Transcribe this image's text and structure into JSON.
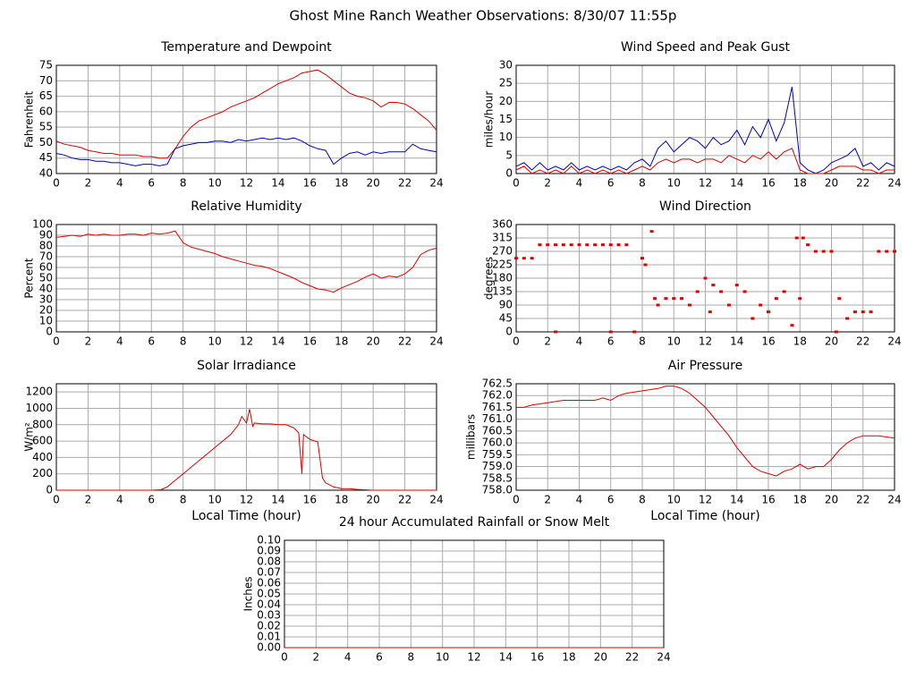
{
  "title": "Ghost Mine Ranch Weather Observations: 8/30/07 11:55p",
  "chart_data": [
    {
      "type": "line",
      "title": "Temperature and Dewpoint",
      "ylabel": "Fahrenheit",
      "x": [
        0,
        0.5,
        1,
        1.5,
        2,
        2.5,
        3,
        3.5,
        4,
        4.5,
        5,
        5.5,
        6,
        6.5,
        7,
        7.5,
        8,
        8.5,
        9,
        9.5,
        10,
        10.5,
        11,
        11.5,
        12,
        12.5,
        13,
        13.5,
        14,
        14.5,
        15,
        15.5,
        16,
        16.5,
        17,
        17.5,
        18,
        18.5,
        19,
        19.5,
        20,
        20.5,
        21,
        21.5,
        22,
        22.5,
        23,
        23.5,
        24
      ],
      "series": [
        {
          "color": "#e00000",
          "values": [
            50.5,
            49.5,
            49,
            48.5,
            47.5,
            47,
            46.5,
            46.5,
            46,
            46,
            46,
            45.5,
            45.5,
            45,
            45,
            48,
            52,
            55,
            57,
            58,
            59,
            60,
            61.5,
            62.5,
            63.5,
            64.5,
            66,
            67.5,
            69,
            70,
            71,
            72.5,
            73,
            73.5,
            72,
            70,
            68,
            66,
            65,
            64.5,
            63.5,
            61.5,
            63,
            63,
            62.5,
            61,
            59,
            57,
            54
          ]
        },
        {
          "color": "#0000c0",
          "values": [
            46.5,
            46,
            45,
            44.5,
            44.5,
            44,
            44,
            43.5,
            43.5,
            43,
            42.5,
            43,
            43,
            42.5,
            43,
            48,
            49,
            49.5,
            50,
            50,
            50.5,
            50.5,
            50,
            51,
            50.5,
            51,
            51.5,
            51,
            51.5,
            51,
            51.5,
            50.5,
            49,
            48,
            47.5,
            43,
            45,
            46.5,
            47,
            46,
            47,
            46.5,
            47,
            47,
            47,
            49.5,
            48,
            47.5,
            47
          ]
        }
      ],
      "xlim": [
        0,
        24
      ],
      "xticks": [
        0,
        2,
        4,
        6,
        8,
        10,
        12,
        14,
        16,
        18,
        20,
        22,
        24
      ],
      "ylim": [
        40,
        75
      ],
      "yticks": [
        40,
        45,
        50,
        55,
        60,
        65,
        70,
        75
      ],
      "grid": true
    },
    {
      "type": "line",
      "title": "Wind Speed and Peak Gust",
      "ylabel": "miles/hour",
      "x": [
        0,
        0.5,
        1,
        1.5,
        2,
        2.5,
        3,
        3.5,
        4,
        4.5,
        5,
        5.5,
        6,
        6.5,
        7,
        7.5,
        8,
        8.5,
        9,
        9.5,
        10,
        10.5,
        11,
        11.5,
        12,
        12.5,
        13,
        13.5,
        14,
        14.5,
        15,
        15.5,
        16,
        16.5,
        17,
        17.5,
        18,
        18.5,
        19,
        19.5,
        20,
        20.5,
        21,
        21.5,
        22,
        22.5,
        23,
        23.5,
        24
      ],
      "series": [
        {
          "color": "#0000c0",
          "values": [
            2,
            3,
            1,
            3,
            1,
            2,
            1,
            3,
            1,
            2,
            1,
            2,
            1,
            2,
            1,
            3,
            4,
            2,
            7,
            9,
            6,
            8,
            10,
            9,
            7,
            10,
            8,
            9,
            12,
            8,
            13,
            10,
            15,
            9,
            14,
            24,
            3,
            1,
            0,
            1,
            3,
            4,
            5,
            7,
            2,
            3,
            1,
            3,
            2
          ]
        },
        {
          "color": "#e00000",
          "values": [
            1,
            2,
            0,
            1,
            0,
            1,
            0,
            2,
            0,
            1,
            0,
            1,
            0,
            1,
            0,
            1,
            2,
            1,
            3,
            4,
            3,
            4,
            4,
            3,
            4,
            4,
            3,
            5,
            4,
            3,
            5,
            4,
            6,
            4,
            6,
            7,
            1,
            0,
            0,
            0,
            1,
            2,
            2,
            2,
            1,
            1,
            0,
            1,
            1
          ]
        }
      ],
      "xlim": [
        0,
        24
      ],
      "xticks": [
        0,
        2,
        4,
        6,
        8,
        10,
        12,
        14,
        16,
        18,
        20,
        22,
        24
      ],
      "ylim": [
        0,
        30
      ],
      "yticks": [
        0,
        5,
        10,
        15,
        20,
        25,
        30
      ],
      "grid": true
    },
    {
      "type": "line",
      "title": "Relative Humidity",
      "ylabel": "Percent",
      "x": [
        0,
        0.5,
        1,
        1.5,
        2,
        2.5,
        3,
        3.5,
        4,
        4.5,
        5,
        5.5,
        6,
        6.5,
        7,
        7.5,
        8,
        8.5,
        9,
        9.5,
        10,
        10.5,
        11,
        11.5,
        12,
        12.5,
        13,
        13.5,
        14,
        14.5,
        15,
        15.5,
        16,
        16.5,
        17,
        17.5,
        18,
        18.5,
        19,
        19.5,
        20,
        20.5,
        21,
        21.5,
        22,
        22.5,
        23,
        23.5,
        24
      ],
      "series": [
        {
          "color": "#e00000",
          "values": [
            88,
            89,
            90,
            89,
            91,
            90,
            91,
            90,
            90,
            91,
            91,
            90,
            92,
            91,
            92,
            94,
            83,
            79,
            77,
            75,
            73,
            70,
            68,
            66,
            64,
            62,
            61,
            59,
            56,
            53,
            50,
            46,
            43,
            40,
            39,
            37,
            41,
            44,
            47,
            51,
            54,
            50,
            52,
            51,
            54,
            60,
            72,
            76,
            78
          ]
        }
      ],
      "xlim": [
        0,
        24
      ],
      "xticks": [
        0,
        2,
        4,
        6,
        8,
        10,
        12,
        14,
        16,
        18,
        20,
        22,
        24
      ],
      "ylim": [
        0,
        100
      ],
      "yticks": [
        0,
        10,
        20,
        30,
        40,
        50,
        60,
        70,
        80,
        90,
        100
      ],
      "grid": true
    },
    {
      "type": "scatter",
      "title": "Wind Direction",
      "ylabel": "degrees",
      "color": "#e00000",
      "x": [
        0,
        0.5,
        1,
        1.5,
        2,
        2.5,
        2.5,
        3,
        3.5,
        4,
        4.5,
        5,
        5.5,
        6,
        6,
        6.5,
        7,
        7.5,
        8,
        8.2,
        8.6,
        8.8,
        9,
        9.5,
        10,
        10.5,
        11,
        11.5,
        12,
        12.3,
        12.5,
        13,
        13.5,
        14,
        14.5,
        15,
        15.5,
        16,
        16.5,
        17,
        17.5,
        17.8,
        18,
        18.2,
        18.5,
        19,
        19.5,
        20,
        20.3,
        20.5,
        21,
        21.5,
        22,
        22.5,
        23,
        23.5,
        24
      ],
      "values": [
        247,
        247,
        247,
        292,
        292,
        292,
        0,
        292,
        292,
        292,
        292,
        292,
        292,
        292,
        0,
        292,
        292,
        0,
        247,
        225,
        337,
        112,
        90,
        112,
        112,
        112,
        90,
        135,
        180,
        67,
        157,
        135,
        90,
        157,
        135,
        45,
        90,
        67,
        112,
        135,
        22,
        315,
        112,
        315,
        292,
        270,
        270,
        270,
        0,
        112,
        45,
        67,
        67,
        67,
        270,
        270,
        270
      ],
      "xlim": [
        0,
        24
      ],
      "xticks": [
        0,
        2,
        4,
        6,
        8,
        10,
        12,
        14,
        16,
        18,
        20,
        22,
        24
      ],
      "ylim": [
        0,
        360
      ],
      "yticks": [
        0,
        45,
        90,
        135,
        180,
        225,
        270,
        315,
        360
      ],
      "grid": true
    },
    {
      "type": "line",
      "title": "Solar Irradiance",
      "ylabel": "W/m²",
      "xlabel": "Local Time (hour)",
      "x": [
        0,
        2,
        4,
        6,
        6.6,
        7,
        7.5,
        8,
        8.5,
        9,
        9.5,
        10,
        10.5,
        11,
        11.5,
        11.7,
        12,
        12.2,
        12.4,
        12.5,
        13,
        13.5,
        14,
        14.5,
        15,
        15.3,
        15.5,
        15.6,
        16,
        16.5,
        16.8,
        17,
        17.5,
        18,
        18.5,
        19,
        20,
        22,
        24
      ],
      "series": [
        {
          "color": "#e00000",
          "values": [
            0,
            0,
            0,
            0,
            5,
            40,
            120,
            200,
            280,
            360,
            440,
            520,
            600,
            680,
            800,
            900,
            820,
            990,
            780,
            820,
            810,
            810,
            800,
            800,
            760,
            700,
            200,
            680,
            620,
            590,
            150,
            90,
            40,
            20,
            20,
            10,
            0,
            0,
            0
          ]
        }
      ],
      "xlim": [
        0,
        24
      ],
      "xticks": [
        0,
        2,
        4,
        6,
        8,
        10,
        12,
        14,
        16,
        18,
        20,
        22,
        24
      ],
      "ylim": [
        0,
        1300
      ],
      "yticks": [
        0,
        200,
        400,
        600,
        800,
        1000,
        1200
      ],
      "grid": true
    },
    {
      "type": "line",
      "title": "Air Pressure",
      "ylabel": "millibars",
      "xlabel": "Local Time (hour)",
      "x": [
        0,
        0.5,
        1,
        2,
        3,
        4,
        5,
        5.5,
        6,
        6.5,
        7,
        8,
        9,
        9.5,
        10,
        10.5,
        11,
        11.5,
        12,
        12.5,
        13,
        13.5,
        14,
        14.5,
        15,
        15.5,
        16,
        16.5,
        17,
        17.5,
        18,
        18.5,
        19,
        19.5,
        20,
        20.5,
        21,
        21.5,
        22,
        23,
        24
      ],
      "series": [
        {
          "color": "#e00000",
          "values": [
            761.5,
            761.5,
            761.6,
            761.7,
            761.8,
            761.8,
            761.8,
            761.9,
            761.8,
            762.0,
            762.1,
            762.2,
            762.3,
            762.4,
            762.4,
            762.3,
            762.1,
            761.8,
            761.5,
            761.1,
            760.7,
            760.3,
            759.8,
            759.4,
            759.0,
            758.8,
            758.7,
            758.6,
            758.8,
            758.9,
            759.1,
            758.9,
            759.0,
            759.0,
            759.3,
            759.7,
            760.0,
            760.2,
            760.3,
            760.3,
            760.2
          ]
        }
      ],
      "xlim": [
        0,
        24
      ],
      "xticks": [
        0,
        2,
        4,
        6,
        8,
        10,
        12,
        14,
        16,
        18,
        20,
        22,
        24
      ],
      "ylim": [
        758,
        762.5
      ],
      "yticks": [
        {
          "value": 758,
          "label": "758.0"
        },
        758.5,
        {
          "value": 759,
          "label": "759.0"
        },
        759.5,
        {
          "value": 760,
          "label": "760.0"
        },
        760.5,
        {
          "value": 761,
          "label": "761.0"
        },
        761.5,
        {
          "value": 762,
          "label": "762.0"
        },
        762.5
      ],
      "grid": true
    },
    {
      "type": "line",
      "title": "24 hour Accumulated Rainfall or Snow Melt",
      "ylabel": "Inches",
      "x": [
        0,
        24
      ],
      "series": [
        {
          "color": "#e00000",
          "values": [
            0,
            0
          ]
        }
      ],
      "xlim": [
        0,
        24
      ],
      "xticks": [
        0,
        2,
        4,
        6,
        8,
        10,
        12,
        14,
        16,
        18,
        20,
        22,
        24
      ],
      "ylim": [
        0,
        0.1
      ],
      "yticks": [
        {
          "value": 0,
          "label": "0.00"
        },
        0.01,
        0.02,
        0.03,
        0.04,
        0.05,
        0.06,
        0.07,
        0.08,
        0.09,
        {
          "value": 0.1,
          "label": "0.10"
        }
      ],
      "grid": true
    }
  ]
}
